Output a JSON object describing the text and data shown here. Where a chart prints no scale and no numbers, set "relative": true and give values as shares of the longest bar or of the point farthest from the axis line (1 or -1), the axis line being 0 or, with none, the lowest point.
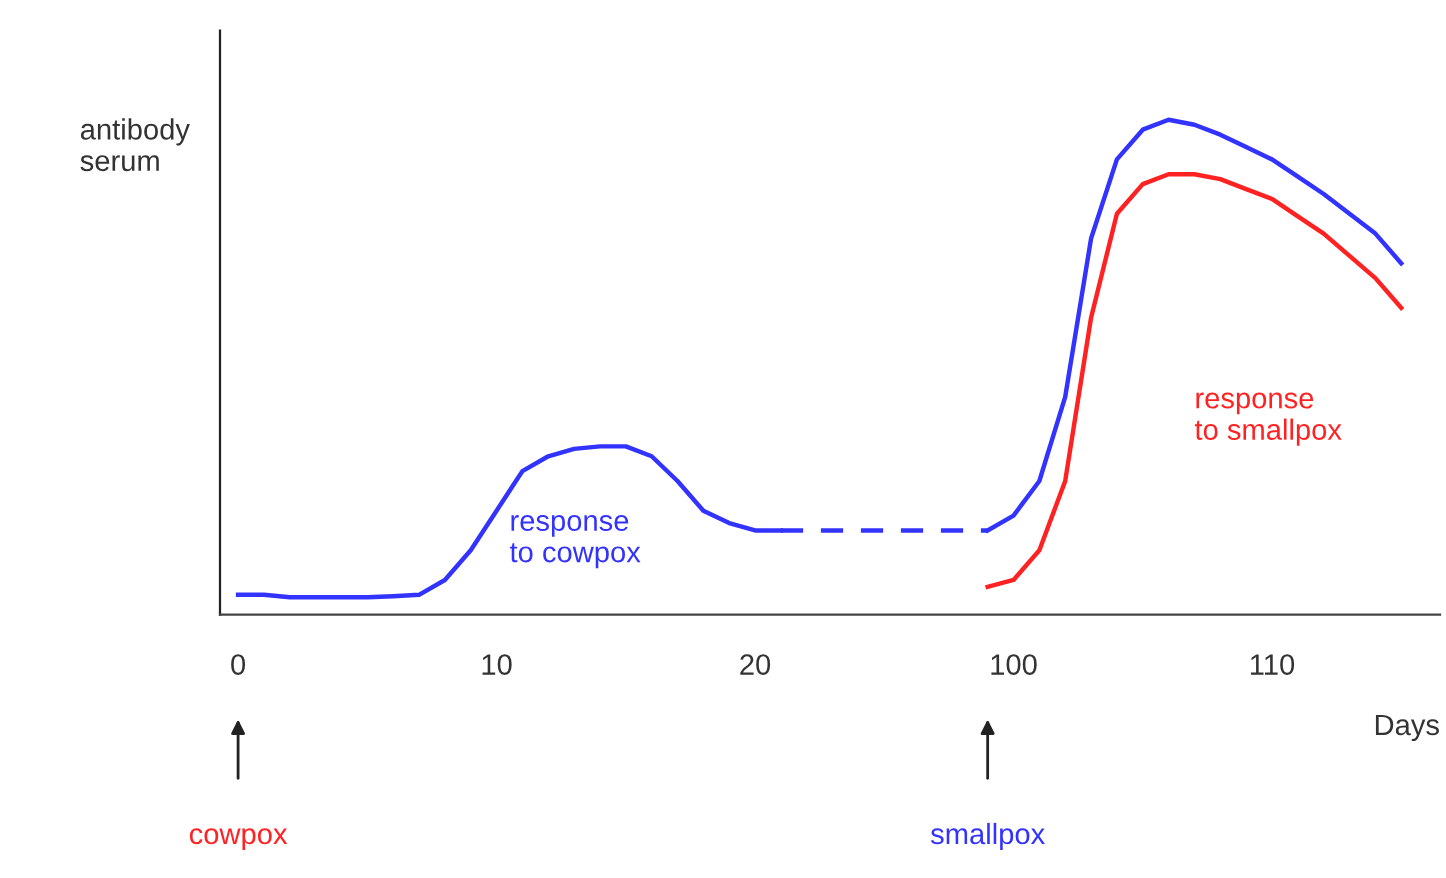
{
  "chart_data": {
    "type": "line",
    "relative": true,
    "xlabel": "Days",
    "ylabel": "antibody\nserum",
    "grid": false,
    "legend": false,
    "marker": "none",
    "categories": [
      "0",
      null,
      null,
      null,
      null,
      null,
      null,
      null,
      null,
      null,
      "10",
      null,
      null,
      null,
      null,
      null,
      null,
      null,
      null,
      null,
      "20",
      null,
      null,
      null,
      null,
      null,
      null,
      null,
      null,
      null,
      "100",
      null,
      null,
      null,
      null,
      null,
      null,
      null,
      null,
      null,
      "110",
      null,
      null,
      null,
      null,
      null,
      null
    ],
    "series": [
      {
        "name": "response\nto cowpox",
        "color": "#3333ff",
        "line_style": "solid",
        "values": [
          0.04,
          0.04,
          0.035,
          0.035,
          0.035,
          0.035,
          0.037,
          0.04,
          0.07,
          0.13,
          0.21,
          0.29,
          0.32,
          0.335,
          0.34,
          0.34,
          0.32,
          0.27,
          0.21,
          0.185,
          0.17,
          0.17,
          null,
          null,
          null,
          null,
          null,
          null,
          null,
          null,
          null,
          null,
          null,
          null,
          null,
          null,
          null,
          null,
          null,
          null,
          null,
          null,
          null,
          null,
          null,
          null,
          null
        ]
      },
      {
        "color": "#3333ff",
        "line_style": "dashed",
        "values": [
          null,
          null,
          null,
          null,
          null,
          null,
          null,
          null,
          null,
          null,
          null,
          null,
          null,
          null,
          null,
          null,
          null,
          null,
          null,
          null,
          null,
          0.17,
          0.17,
          0.17,
          0.17,
          0.17,
          0.17,
          0.17,
          0.17,
          0.17,
          null,
          null,
          null,
          null,
          null,
          null,
          null,
          null,
          null,
          null,
          null,
          null,
          null,
          null,
          null,
          null,
          null
        ]
      },
      {
        "color": "#3333ff",
        "line_style": "solid",
        "values": [
          null,
          null,
          null,
          null,
          null,
          null,
          null,
          null,
          null,
          null,
          null,
          null,
          null,
          null,
          null,
          null,
          null,
          null,
          null,
          null,
          null,
          null,
          null,
          null,
          null,
          null,
          null,
          null,
          null,
          0.17,
          0.2,
          0.27,
          0.44,
          0.76,
          0.92,
          0.98,
          1,
          0.99,
          0.97,
          0.945,
          0.92,
          0.885,
          0.85,
          0.81,
          0.77,
          0.71,
          null
        ]
      },
      {
        "name": "response\nto smallpox",
        "color": "#ff2222",
        "line_style": "solid",
        "values": [
          null,
          null,
          null,
          null,
          null,
          null,
          null,
          null,
          null,
          null,
          null,
          null,
          null,
          null,
          null,
          null,
          null,
          null,
          null,
          null,
          null,
          null,
          null,
          null,
          null,
          null,
          null,
          null,
          null,
          0.056,
          0.07,
          0.13,
          0.27,
          0.6,
          0.81,
          0.87,
          0.89,
          0.89,
          0.88,
          0.86,
          0.84,
          0.805,
          0.77,
          0.725,
          0.68,
          0.62,
          null
        ]
      }
    ],
    "annotations": [
      "cowpox",
      "smallpox"
    ]
  }
}
